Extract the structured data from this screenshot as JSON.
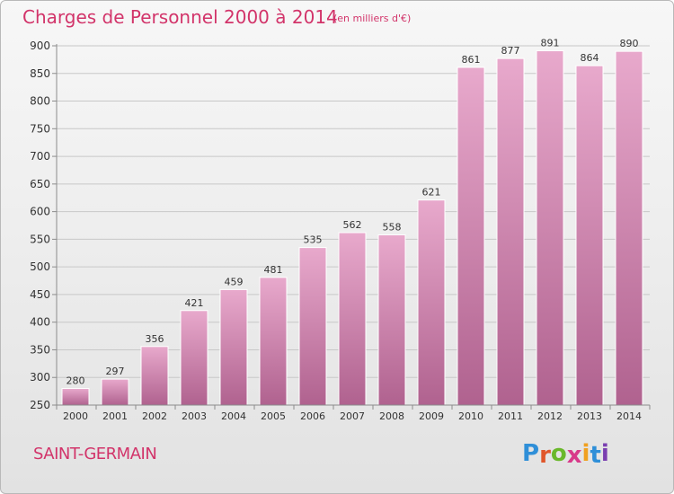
{
  "title": "Charges de Personnel 2000 à 2014",
  "subtitle": "(en milliers d'€)",
  "commune": "SAINT-GERMAIN",
  "logo": {
    "text": "Proxiti",
    "letter_colors": [
      "#2f8fd8",
      "#e0562a",
      "#6ab82b",
      "#d83a8a",
      "#f0a020",
      "#2f8fd8",
      "#7a3fb0"
    ]
  },
  "colors": {
    "title": "#d2346a",
    "bar_top": "#e8a9cc",
    "bar_bottom": "#b0628f",
    "axis": "#8c8c8c",
    "grid": "#c8c8c8"
  },
  "chart_data": {
    "type": "bar",
    "categories": [
      "2000",
      "2001",
      "2002",
      "2003",
      "2004",
      "2005",
      "2006",
      "2007",
      "2008",
      "2009",
      "2010",
      "2011",
      "2012",
      "2013",
      "2014"
    ],
    "values": [
      280,
      297,
      356,
      421,
      459,
      481,
      535,
      562,
      558,
      621,
      861,
      877,
      891,
      864,
      890
    ],
    "ylim": [
      250,
      900
    ],
    "yticks": [
      250,
      300,
      350,
      400,
      450,
      500,
      550,
      600,
      650,
      700,
      750,
      800,
      850,
      900
    ],
    "grid": true,
    "data_labels": true
  }
}
